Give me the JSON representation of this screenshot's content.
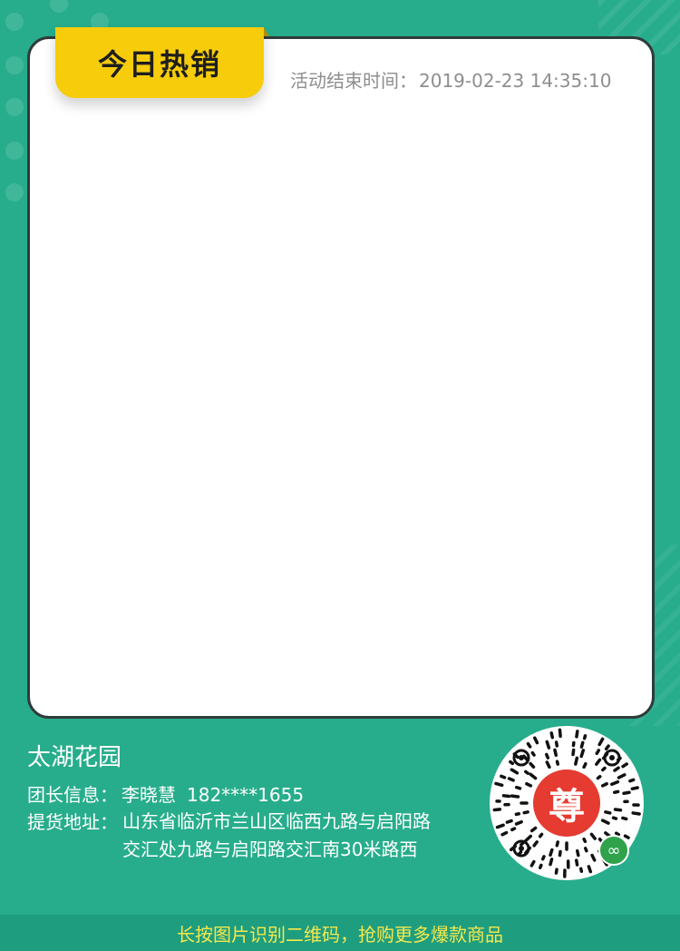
{
  "header": {
    "badge_title": "今日热销",
    "end_time_label": "活动结束时间：",
    "end_time_value": "2019-02-23 14:35:10"
  },
  "shop": {
    "name": "太湖花园",
    "leader_label": "团长信息：",
    "leader_name": "李晓慧",
    "leader_phone": "182****1655",
    "address_label": "提货地址：",
    "address_line1": "山东省临沂市兰山区临西九路与启阳路",
    "address_line2": "交汇处九路与启阳路交汇南30米路西"
  },
  "qr": {
    "center_char": "尊",
    "icon": "mini-program-link-icon"
  },
  "footer": {
    "text": "长按图片识别二维码，抢购更多爆款商品"
  },
  "colors": {
    "background": "#27ad8c",
    "badge": "#f7cc0a",
    "footer_text": "#f5e84c",
    "qr_center": "#e53b30"
  }
}
